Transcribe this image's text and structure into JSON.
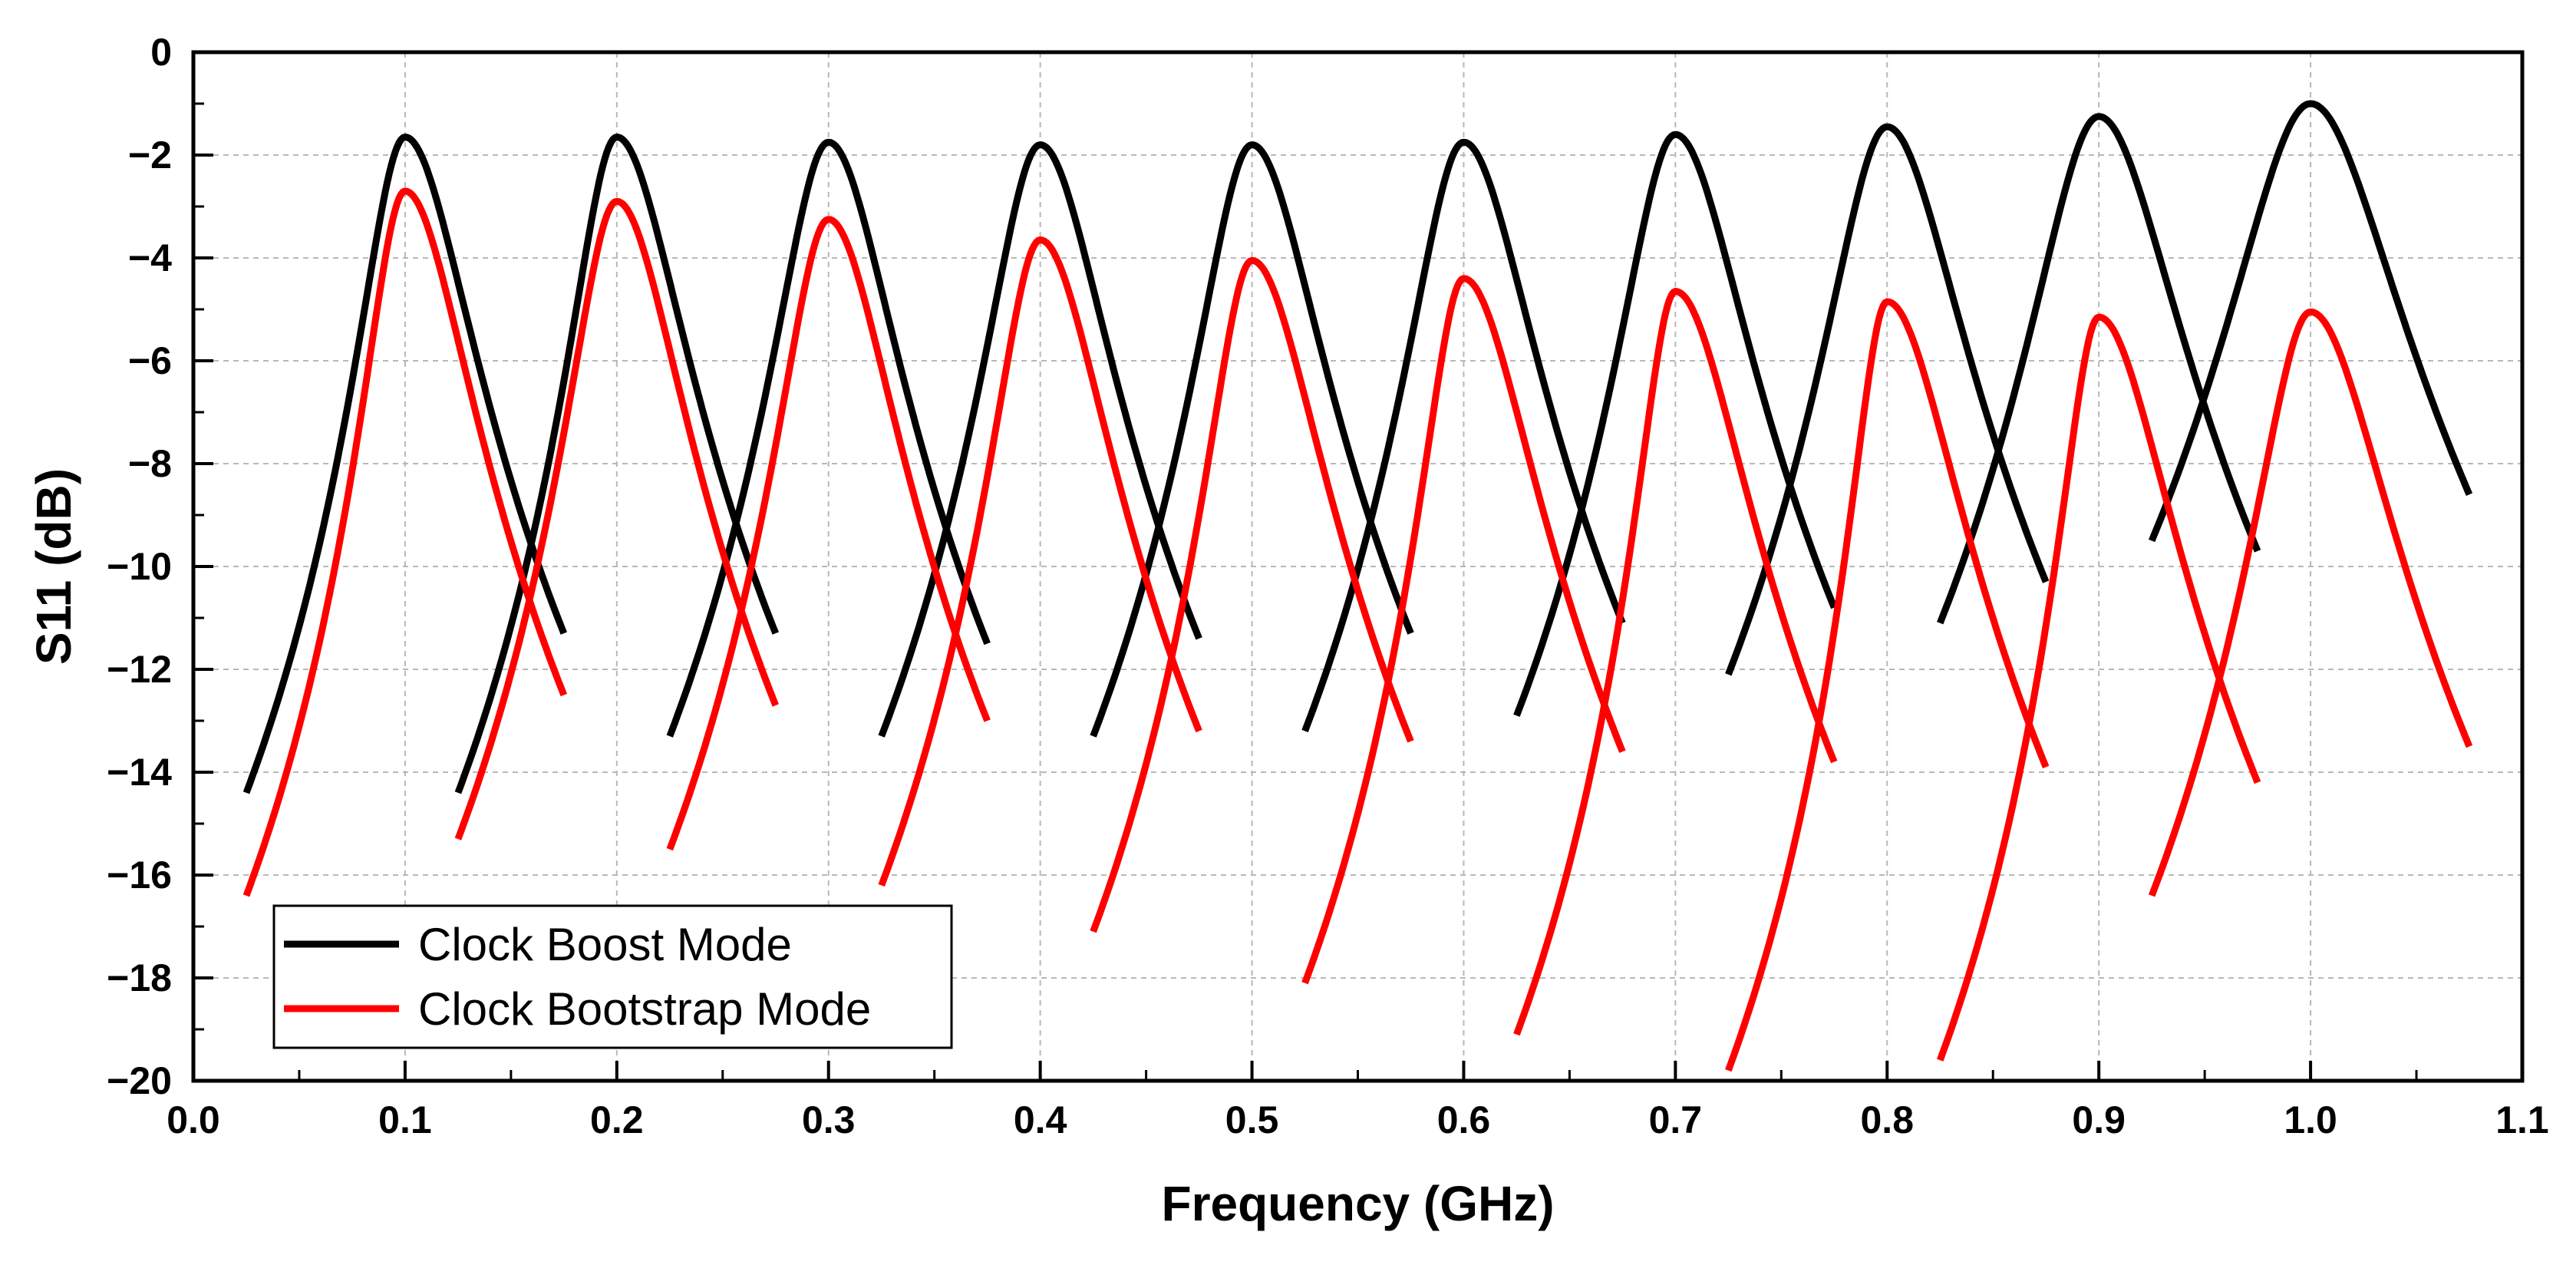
{
  "chart_data": {
    "type": "line",
    "title": "",
    "xlabel": "Frequency (GHz)",
    "ylabel": "S11 (dB)",
    "xlim": [
      0.0,
      1.1
    ],
    "ylim": [
      -20,
      0
    ],
    "xticks": [
      "0.0",
      "0.1",
      "0.2",
      "0.3",
      "0.4",
      "0.5",
      "0.6",
      "0.7",
      "0.8",
      "0.9",
      "1.0",
      "1.1"
    ],
    "yticks": [
      "0",
      "−2",
      "−4",
      "−6",
      "−8",
      "−10",
      "−12",
      "−14",
      "−16",
      "−18",
      "−20"
    ],
    "grid": true,
    "legend_position": "bottom-left",
    "series": [
      {
        "name": "Clock Boost Mode",
        "color": "#000000",
        "resonances": [
          {
            "center": 0.1,
            "x_range": [
              0.025,
              0.175
            ],
            "peak": -1.65,
            "start": -14.4,
            "end": -11.3
          },
          {
            "center": 0.2,
            "x_range": [
              0.125,
              0.275
            ],
            "peak": -1.65,
            "start": -14.4,
            "end": -11.3
          },
          {
            "center": 0.3,
            "x_range": [
              0.225,
              0.375
            ],
            "peak": -1.75,
            "start": -13.3,
            "end": -11.5
          },
          {
            "center": 0.4,
            "x_range": [
              0.325,
              0.475
            ],
            "peak": -1.8,
            "start": -13.3,
            "end": -11.4
          },
          {
            "center": 0.5,
            "x_range": [
              0.425,
              0.575
            ],
            "peak": -1.8,
            "start": -13.3,
            "end": -11.3
          },
          {
            "center": 0.6,
            "x_range": [
              0.525,
              0.675
            ],
            "peak": -1.75,
            "start": -13.2,
            "end": -11.1
          },
          {
            "center": 0.7,
            "x_range": [
              0.625,
              0.775
            ],
            "peak": -1.6,
            "start": -12.9,
            "end": -10.8
          },
          {
            "center": 0.8,
            "x_range": [
              0.725,
              0.875
            ],
            "peak": -1.45,
            "start": -12.1,
            "end": -10.3
          },
          {
            "center": 0.9,
            "x_range": [
              0.825,
              0.975
            ],
            "peak": -1.25,
            "start": -11.1,
            "end": -9.7
          },
          {
            "center": 1.0,
            "x_range": [
              0.925,
              1.075
            ],
            "peak": -1.0,
            "start": -9.5,
            "end": -8.6
          }
        ]
      },
      {
        "name": "Clock Bootstrap Mode",
        "color": "#ff0000",
        "resonances": [
          {
            "center": 0.1,
            "x_range": [
              0.025,
              0.175
            ],
            "peak": -2.7,
            "start": -16.4,
            "end": -12.5
          },
          {
            "center": 0.2,
            "x_range": [
              0.125,
              0.275
            ],
            "peak": -2.9,
            "start": -15.3,
            "end": -12.7
          },
          {
            "center": 0.3,
            "x_range": [
              0.225,
              0.375
            ],
            "peak": -3.25,
            "start": -15.5,
            "end": -13.0
          },
          {
            "center": 0.4,
            "x_range": [
              0.325,
              0.475
            ],
            "peak": -3.65,
            "start": -16.2,
            "end": -13.2
          },
          {
            "center": 0.5,
            "x_range": [
              0.425,
              0.575
            ],
            "peak": -4.05,
            "start": -17.1,
            "end": -13.4
          },
          {
            "center": 0.6,
            "x_range": [
              0.525,
              0.675
            ],
            "peak": -4.4,
            "start": -18.1,
            "end": -13.6
          },
          {
            "center": 0.7,
            "x_range": [
              0.625,
              0.775
            ],
            "peak": -4.65,
            "start": -19.1,
            "end": -13.8
          },
          {
            "center": 0.8,
            "x_range": [
              0.725,
              0.875
            ],
            "peak": -4.85,
            "start": -19.8,
            "end": -13.9
          },
          {
            "center": 0.9,
            "x_range": [
              0.825,
              0.975
            ],
            "peak": -5.15,
            "start": -19.6,
            "end": -14.2
          },
          {
            "center": 1.0,
            "x_range": [
              0.925,
              1.075
            ],
            "peak": -5.05,
            "start": -16.4,
            "end": -13.5
          }
        ]
      }
    ]
  }
}
